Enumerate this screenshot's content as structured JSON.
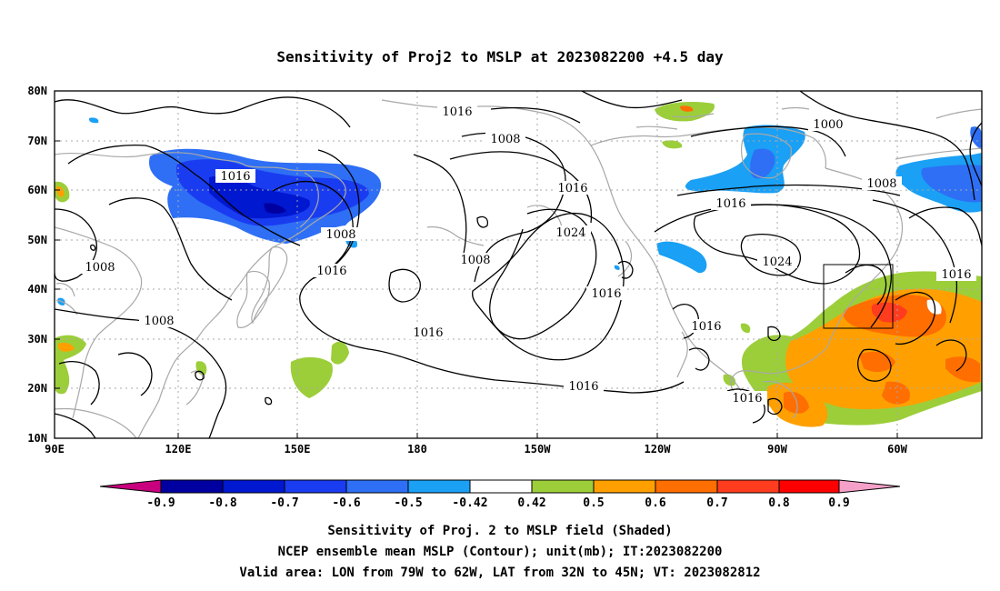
{
  "title": "Sensitivity of Proj2 to MSLP at 2023082200 +4.5 day",
  "lat_labels": [
    "80N",
    "70N",
    "60N",
    "50N",
    "40N",
    "30N",
    "20N",
    "10N"
  ],
  "lon_labels": [
    "90E",
    "120E",
    "150E",
    "180",
    "150W",
    "120W",
    "90W",
    "60W"
  ],
  "contour_labels": {
    "c1": "1016",
    "c2": "1008",
    "c3": "1000",
    "c4": "1016",
    "c5": "1008",
    "c6": "1016",
    "c7": "1024",
    "c8": "1016",
    "c9": "1008",
    "c10": "1016",
    "c11": "1008",
    "c12": "1016",
    "c13": "1008",
    "c14": "1016",
    "c15": "1024",
    "c16": "1016",
    "c17": "1016",
    "c18": "1016",
    "c19": "1016",
    "c20": "1016",
    "c21": "1016",
    "c22": "1008"
  },
  "colorbar": {
    "labels": [
      "-0.9",
      "-0.8",
      "-0.7",
      "-0.6",
      "-0.5",
      "-0.42",
      "0.42",
      "0.5",
      "0.6",
      "0.7",
      "0.8",
      "0.9"
    ],
    "colors": [
      "#c8007d",
      "#0000a0",
      "#0018d0",
      "#1a3cf0",
      "#2e6ff5",
      "#1aa0f5",
      "#10c8f5",
      "#ffffff",
      "#9cce3a",
      "#ffa000",
      "#ff6e00",
      "#ff3c1e",
      "#ff0000",
      "#f5a0c8"
    ]
  },
  "caption": {
    "line1": "Sensitivity of Proj. 2 to MSLP field (Shaded)",
    "line2": "NCEP ensemble mean MSLP (Contour); unit(mb); IT:2023082200",
    "line3": "Valid area: LON from 79W to 62W, LAT from 32N to 45N; VT: 2023082812"
  },
  "map_data": {
    "projection": "cylindrical-equidistant",
    "lon_range": [
      "90E",
      "50W"
    ],
    "lat_range": [
      "10N",
      "80N"
    ],
    "contour_interval_mb": 8,
    "valid_area": {
      "lon": [
        "79W",
        "62W"
      ],
      "lat": [
        "32N",
        "45N"
      ]
    },
    "shaded_regions": [
      {
        "name": "Sea of Okhotsk / Kamchatka",
        "sign": "negative",
        "min": -0.8
      },
      {
        "name": "Hudson Bay",
        "sign": "negative",
        "min": -0.6
      },
      {
        "name": "Labrador Sea",
        "sign": "negative",
        "min": -0.6
      },
      {
        "name": "Western North Atlantic",
        "sign": "positive",
        "max": 0.8
      },
      {
        "name": "Gulf of Mexico",
        "sign": "positive",
        "max": 0.7
      },
      {
        "name": "Philippine Sea",
        "sign": "positive",
        "max": 0.5
      }
    ]
  }
}
